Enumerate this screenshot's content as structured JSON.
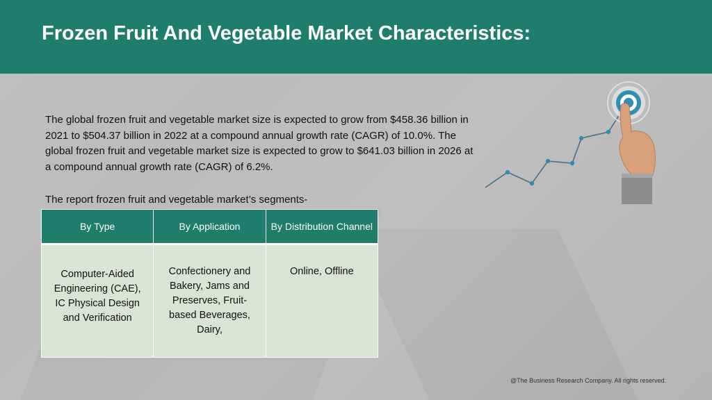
{
  "slide": {
    "title": "Frozen Fruit And Vegetable Market Characteristics:",
    "intro": "The global frozen fruit and vegetable market size is expected to grow from $458.36 billion in 2021 to $504.37 billion in 2022 at a compound annual growth rate (CAGR) of 10.0%. The global frozen fruit and vegetable market size is expected to grow to $641.03 billion in 2026 at a compound annual growth rate (CAGR) of 6.2%.",
    "segments_label": "The report frozen fruit and vegetable market’s segments-",
    "table": {
      "headers": [
        "By Type",
        "By Application",
        "By Distribution Channel"
      ],
      "cells": [
        "Computer-Aided Engineering (CAE), IC Physical Design and Verification",
        "Confectionery and Bakery, Jams and Preserves, Fruit-based Beverages, Dairy,",
        "Online, Offline"
      ]
    },
    "footer": "@The Business Research Company. All rights reserved.",
    "colors": {
      "header": "#1f7d6c",
      "table_body": "#d9e5d3",
      "background": "#bcbcbc",
      "chart_line": "#4a6e86",
      "chart_point": "#2f8fb0"
    },
    "illustration_icon": "hand-touching-target-growth-chart"
  }
}
